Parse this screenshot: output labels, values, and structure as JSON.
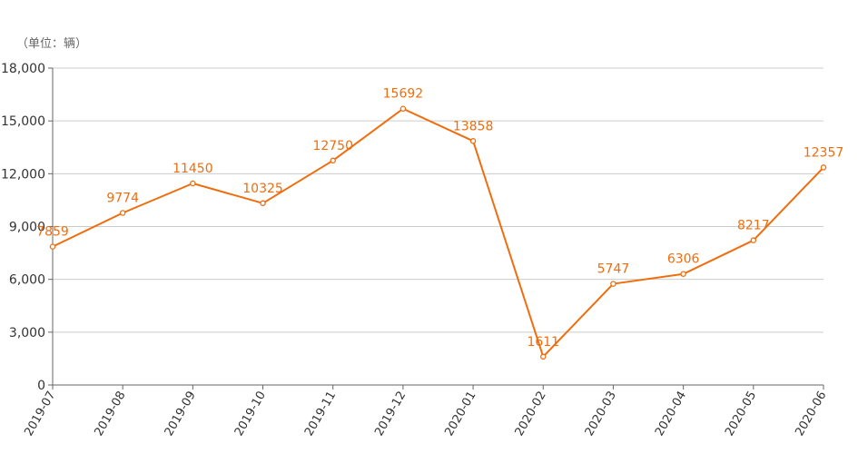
{
  "chart_data": {
    "type": "line",
    "unit_label": "（单位：辆）",
    "categories": [
      "2019-07",
      "2019-08",
      "2019-09",
      "2019-10",
      "2019-11",
      "2019-12",
      "2020-01",
      "2020-02",
      "2020-03",
      "2020-04",
      "2020-05",
      "2020-06"
    ],
    "series": [
      {
        "values": [
          7859,
          9774,
          11450,
          10325,
          12750,
          15692,
          13858,
          1611,
          5747,
          6306,
          8217,
          12357
        ],
        "color": "#f06d0e"
      }
    ],
    "ylim": [
      0,
      18000
    ],
    "y_ticks": [
      "0",
      "3,000",
      "6,000",
      "9,000",
      "12,000",
      "15,000",
      "18,000"
    ],
    "y_tick_values": [
      0,
      3000,
      6000,
      9000,
      12000,
      15000,
      18000
    ],
    "grid": true,
    "grid_color": "#cccccc",
    "axis_color": "#666666",
    "legend": "none"
  }
}
